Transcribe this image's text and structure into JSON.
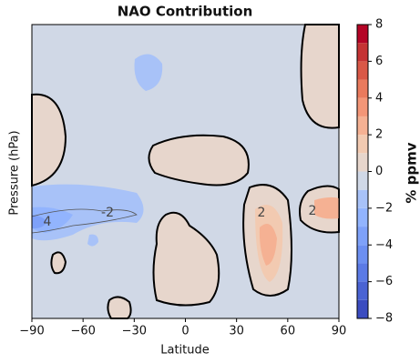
{
  "chart_data": {
    "type": "contour",
    "title": "NAO Contribution",
    "x_label": "Latitude",
    "y_label": "Pressure (hPa)",
    "xlim": [
      -90,
      90
    ],
    "xticks": [
      {
        "value": -90,
        "label": "−90"
      },
      {
        "value": -60,
        "label": "−60"
      },
      {
        "value": -30,
        "label": "−30"
      },
      0,
      30,
      60,
      90
    ],
    "colorbar_label": "% ppmv",
    "levels": [
      -8,
      -7,
      -6,
      -5,
      -4,
      -3,
      -2,
      -1,
      0,
      1,
      2,
      3,
      4,
      5,
      6,
      7,
      8
    ],
    "colors": [
      "#3b4cc0",
      "#4a63d3",
      "#5b7ae5",
      "#6c8ff1",
      "#7ea1f9",
      "#92b4fe",
      "#a8c2f8",
      "#d0d8e6",
      "#e7d6cc",
      "#f2cab1",
      "#f5b193",
      "#f39677",
      "#e97a5d",
      "#d95847",
      "#c53334",
      "#b40426"
    ],
    "colorbar_ticks": [
      {
        "value": -8,
        "label": "−8"
      },
      {
        "value": -6,
        "label": "−6"
      },
      {
        "value": -4,
        "label": "−4"
      },
      {
        "value": -2,
        "label": "−2"
      },
      0,
      2,
      4,
      6,
      8
    ],
    "contour_labels": [
      {
        "value": -2,
        "label": "-2"
      },
      2,
      2,
      4
    ]
  }
}
